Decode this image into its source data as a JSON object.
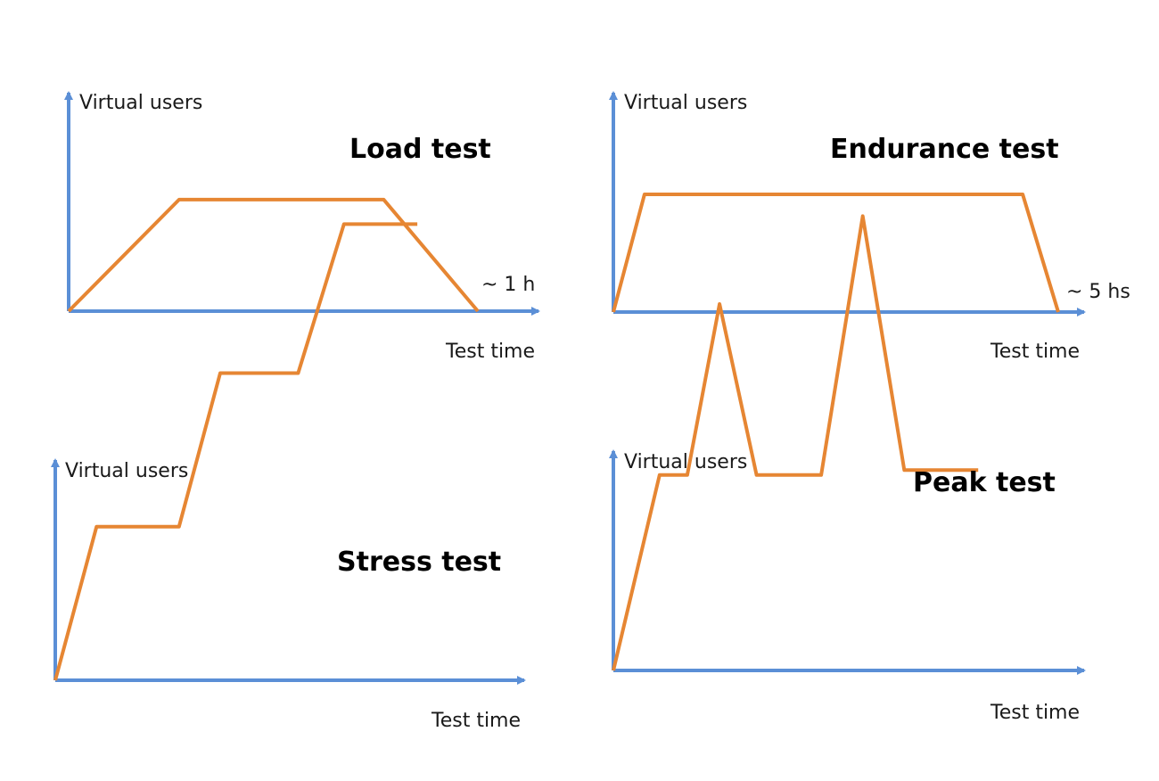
{
  "colors": {
    "axis": "#5b8fd6",
    "line": "#e68633",
    "text": "#1a1a1a",
    "background": "#ffffff"
  },
  "panels": [
    {
      "title": "Load test",
      "y_label": "Virtual users",
      "x_label": "Test time",
      "duration_label": "~ 1 h",
      "profile": [
        [
          0,
          0
        ],
        [
          0.27,
          0.68
        ],
        [
          0.77,
          0.68
        ],
        [
          1.0,
          0
        ]
      ]
    },
    {
      "title": "Endurance test",
      "y_label": "Virtual users",
      "x_label": "Test time",
      "duration_label": "~ 5 hs",
      "profile": [
        [
          0,
          0
        ],
        [
          0.07,
          0.67
        ],
        [
          0.92,
          0.67
        ],
        [
          1.0,
          0
        ]
      ]
    },
    {
      "title": "Stress test",
      "y_label": "Virtual users",
      "x_label": "Test time",
      "duration_label": "",
      "profile": [
        [
          0,
          0
        ],
        [
          0.09,
          0.33
        ],
        [
          0.27,
          0.33
        ],
        [
          0.36,
          0.66
        ],
        [
          0.53,
          0.66
        ],
        [
          0.63,
          0.98
        ],
        [
          0.79,
          0.98
        ]
      ]
    },
    {
      "title": "Peak test",
      "y_label": "Virtual users",
      "x_label": "Test time",
      "duration_label": "",
      "profile": [
        [
          0,
          0
        ],
        [
          0.1,
          0.4
        ],
        [
          0.16,
          0.4
        ],
        [
          0.23,
          0.75
        ],
        [
          0.31,
          0.4
        ],
        [
          0.45,
          0.4
        ],
        [
          0.54,
          0.93
        ],
        [
          0.63,
          0.41
        ],
        [
          0.79,
          0.41
        ]
      ]
    }
  ]
}
